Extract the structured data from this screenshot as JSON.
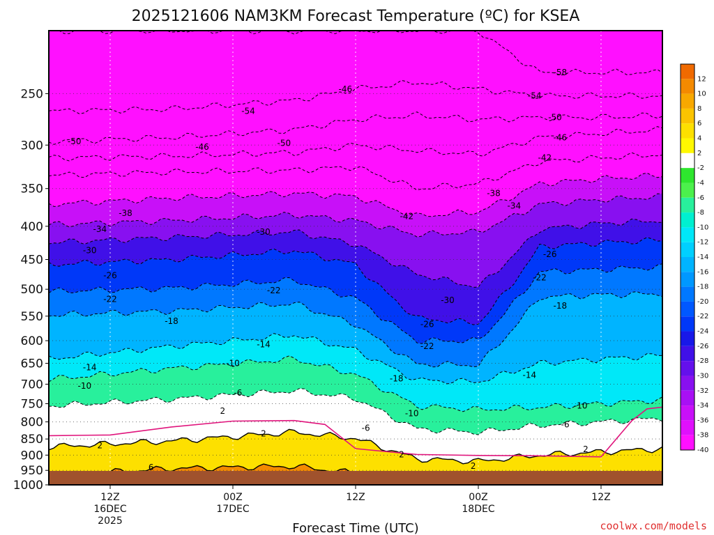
{
  "chart_data": {
    "type": "heatmap",
    "title": "2025121606 NAM3KM Forecast Temperature (ºC) for KSEA",
    "xlabel": "Forecast Time (UTC)",
    "ylabel": "",
    "credit": "coolwx.com/models",
    "y_scale": "log-pressure",
    "y_range_hPa": [
      1000,
      200
    ],
    "y_ticks": [
      250,
      300,
      350,
      400,
      450,
      500,
      550,
      600,
      650,
      700,
      750,
      800,
      850,
      900,
      950,
      1000
    ],
    "x_range_hours": [
      0,
      60
    ],
    "x_ticks": [
      {
        "hour": 6,
        "lines": [
          "12Z",
          "16DEC",
          "2025"
        ]
      },
      {
        "hour": 18,
        "lines": [
          "00Z",
          "17DEC"
        ]
      },
      {
        "hour": 30,
        "lines": [
          "12Z"
        ]
      },
      {
        "hour": 42,
        "lines": [
          "00Z",
          "18DEC"
        ]
      },
      {
        "hour": 54,
        "lines": [
          "12Z"
        ]
      }
    ],
    "grid": true,
    "ground": {
      "color": "#a0522d"
    },
    "colorbar": {
      "placement": "right",
      "bins": [
        {
          "label": "12",
          "color": "#f06a00"
        },
        {
          "label": "10",
          "color": "#f48a00"
        },
        {
          "label": "8",
          "color": "#f8a800"
        },
        {
          "label": "6",
          "color": "#fbc400"
        },
        {
          "label": "4",
          "color": "#fde000"
        },
        {
          "label": "2",
          "color": "#fff800"
        },
        {
          "label": "-2",
          "color": "#ffffff"
        },
        {
          "label": "-4",
          "color": "#2ee62e"
        },
        {
          "label": "-6",
          "color": "#4cf04c"
        },
        {
          "label": "-8",
          "color": "#28f09c"
        },
        {
          "label": "-10",
          "color": "#00f0d0"
        },
        {
          "label": "-12",
          "color": "#00e8f8"
        },
        {
          "label": "-14",
          "color": "#00d0ff"
        },
        {
          "label": "-16",
          "color": "#00b4ff"
        },
        {
          "label": "-18",
          "color": "#0098ff"
        },
        {
          "label": "-20",
          "color": "#0078ff"
        },
        {
          "label": "-22",
          "color": "#0058ff"
        },
        {
          "label": "-24",
          "color": "#0038f8"
        },
        {
          "label": "-26",
          "color": "#1818e8"
        },
        {
          "label": "-28",
          "color": "#4010e8"
        },
        {
          "label": "-30",
          "color": "#6410ec"
        },
        {
          "label": "-32",
          "color": "#8810f0"
        },
        {
          "label": "-34",
          "color": "#a810f4"
        },
        {
          "label": "-36",
          "color": "#c810f8"
        },
        {
          "label": "-38",
          "color": "#e010fc"
        },
        {
          "label": "-40",
          "color": "#ff10ff"
        }
      ]
    },
    "colors": {
      "below_min": "#ff10ff",
      "highlight_isotherm": "#e0147c"
    },
    "isotherms_hPa": [
      {
        "value": -58,
        "hours": [
          0,
          12,
          24,
          30,
          36,
          42,
          48,
          54,
          60
        ],
        "p": [
          200,
          200,
          200,
          200,
          200,
          200,
          232,
          232,
          232
        ]
      },
      {
        "value": -54,
        "hours": [
          0,
          12,
          24,
          30,
          36,
          42,
          48,
          54,
          60
        ],
        "p": [
          266,
          264,
          256,
          246,
          240,
          246,
          252,
          252,
          252
        ]
      },
      {
        "value": -50,
        "hours": [
          0,
          12,
          24,
          30,
          36,
          42,
          48,
          54,
          60
        ],
        "p": [
          296,
          292,
          284,
          274,
          270,
          274,
          272,
          272,
          270
        ]
      },
      {
        "value": -46,
        "hours": [
          0,
          12,
          24,
          30,
          36,
          42,
          48,
          54,
          60
        ],
        "p": [
          314,
          312,
          308,
          300,
          306,
          310,
          292,
          288,
          284
        ]
      },
      {
        "value": -42,
        "hours": [
          0,
          12,
          24,
          30,
          36,
          42,
          48,
          54,
          60
        ],
        "p": [
          334,
          330,
          328,
          324,
          350,
          344,
          318,
          314,
          310
        ]
      },
      {
        "value": -38,
        "hours": [
          0,
          12,
          24,
          30,
          36,
          42,
          48,
          54,
          60
        ],
        "p": [
          370,
          362,
          356,
          360,
          386,
          380,
          344,
          338,
          334
        ]
      },
      {
        "value": -34,
        "hours": [
          0,
          12,
          24,
          30,
          36,
          42,
          48,
          54,
          60
        ],
        "p": [
          398,
          392,
          384,
          392,
          412,
          408,
          370,
          364,
          360
        ]
      },
      {
        "value": -30,
        "hours": [
          0,
          12,
          24,
          30,
          36,
          42,
          48,
          54,
          60
        ],
        "p": [
          424,
          416,
          408,
          426,
          474,
          496,
          404,
          396,
          392
        ]
      },
      {
        "value": -26,
        "hours": [
          0,
          12,
          24,
          30,
          36,
          42,
          48,
          54,
          60
        ],
        "p": [
          458,
          450,
          436,
          458,
          554,
          564,
          430,
          424,
          420
        ]
      },
      {
        "value": -22,
        "hours": [
          0,
          12,
          24,
          30,
          36,
          42,
          48,
          54,
          60
        ],
        "p": [
          504,
          498,
          484,
          516,
          600,
          600,
          470,
          466,
          462
        ]
      },
      {
        "value": -18,
        "hours": [
          0,
          12,
          24,
          30,
          36,
          42,
          48,
          54,
          60
        ],
        "p": [
          548,
          540,
          526,
          566,
          652,
          654,
          514,
          510,
          508
        ]
      },
      {
        "value": -14,
        "hours": [
          0,
          12,
          24,
          30,
          36,
          42,
          48,
          54,
          60
        ],
        "p": [
          640,
          612,
          588,
          620,
          690,
          694,
          650,
          640,
          632
        ]
      },
      {
        "value": -10,
        "hours": [
          0,
          12,
          24,
          30,
          36,
          42,
          48,
          54,
          60
        ],
        "p": [
          688,
          662,
          640,
          676,
          756,
          766,
          760,
          750,
          740
        ]
      },
      {
        "value": -6,
        "hours": [
          0,
          12,
          24,
          30,
          36,
          42,
          48,
          54,
          60
        ],
        "p": [
          756,
          738,
          716,
          736,
          820,
          830,
          810,
          800,
          790
        ]
      },
      {
        "value": 2,
        "hours": [
          0,
          12,
          24,
          30,
          36,
          42,
          48,
          54,
          60
        ],
        "p": [
          874,
          856,
          830,
          848,
          912,
          920,
          900,
          890,
          880
        ]
      },
      {
        "value": 6,
        "hours": [
          0,
          12,
          24,
          30,
          36,
          42,
          48,
          54,
          60
        ],
        "p": [
          968,
          944,
          936,
          960,
          1000,
          1000,
          1000,
          1000,
          984
        ]
      }
    ],
    "contour_labels": [
      {
        "text": "-58",
        "hour": 50,
        "p": 232
      },
      {
        "text": "-54",
        "hour": 47.5,
        "p": 252
      },
      {
        "text": "-54",
        "hour": 19.5,
        "p": 266
      },
      {
        "text": "-50",
        "hour": 49.5,
        "p": 272
      },
      {
        "text": "-50",
        "hour": 2.5,
        "p": 296
      },
      {
        "text": "-50",
        "hour": 23,
        "p": 298
      },
      {
        "text": "-46",
        "hour": 29,
        "p": 246
      },
      {
        "text": "-46",
        "hour": 50,
        "p": 292
      },
      {
        "text": "-46",
        "hour": 15,
        "p": 302
      },
      {
        "text": "-42",
        "hour": 48.5,
        "p": 314
      },
      {
        "text": "-42",
        "hour": 35,
        "p": 386
      },
      {
        "text": "-38",
        "hour": 43.5,
        "p": 356
      },
      {
        "text": "-38",
        "hour": 7.5,
        "p": 382
      },
      {
        "text": "-34",
        "hour": 45.5,
        "p": 372
      },
      {
        "text": "-34",
        "hour": 5,
        "p": 404
      },
      {
        "text": "-30",
        "hour": 4,
        "p": 436
      },
      {
        "text": "-30",
        "hour": 21,
        "p": 408
      },
      {
        "text": "-30",
        "hour": 39,
        "p": 520
      },
      {
        "text": "-26",
        "hour": 6,
        "p": 476
      },
      {
        "text": "-26",
        "hour": 49,
        "p": 442
      },
      {
        "text": "-26",
        "hour": 37,
        "p": 566
      },
      {
        "text": "-22",
        "hour": 6,
        "p": 518
      },
      {
        "text": "-22",
        "hour": 22,
        "p": 502
      },
      {
        "text": "-22",
        "hour": 48,
        "p": 480
      },
      {
        "text": "-22",
        "hour": 37,
        "p": 612
      },
      {
        "text": "-18",
        "hour": 12,
        "p": 560
      },
      {
        "text": "-18",
        "hour": 50,
        "p": 530
      },
      {
        "text": "-18",
        "hour": 34,
        "p": 686
      },
      {
        "text": "-14",
        "hour": 4,
        "p": 660
      },
      {
        "text": "-14",
        "hour": 21,
        "p": 608
      },
      {
        "text": "-14",
        "hour": 47,
        "p": 678
      },
      {
        "text": "-10",
        "hour": 3.5,
        "p": 704
      },
      {
        "text": "-10",
        "hour": 18,
        "p": 650
      },
      {
        "text": "-10",
        "hour": 35.5,
        "p": 776
      },
      {
        "text": "-10",
        "hour": 52,
        "p": 756
      },
      {
        "text": "-6",
        "hour": 18.5,
        "p": 722
      },
      {
        "text": "-6",
        "hour": 31,
        "p": 818
      },
      {
        "text": "-6",
        "hour": 50.5,
        "p": 808
      },
      {
        "text": "2",
        "hour": 5,
        "p": 870
      },
      {
        "text": "2",
        "hour": 17,
        "p": 770
      },
      {
        "text": "2",
        "hour": 21,
        "p": 834
      },
      {
        "text": "2",
        "hour": 34.5,
        "p": 898
      },
      {
        "text": "2",
        "hour": 52.5,
        "p": 882
      },
      {
        "text": "2",
        "hour": 41.5,
        "p": 936
      },
      {
        "text": "6",
        "hour": 10,
        "p": 940
      }
    ],
    "highlight_isotherm_0C": {
      "hours": [
        0,
        6,
        12,
        18,
        24,
        27,
        30,
        36,
        42,
        48,
        54,
        57,
        58.5,
        60
      ],
      "p": [
        840,
        834,
        812,
        800,
        800,
        810,
        880,
        894,
        898,
        904,
        910,
        800,
        762,
        760
      ]
    }
  }
}
